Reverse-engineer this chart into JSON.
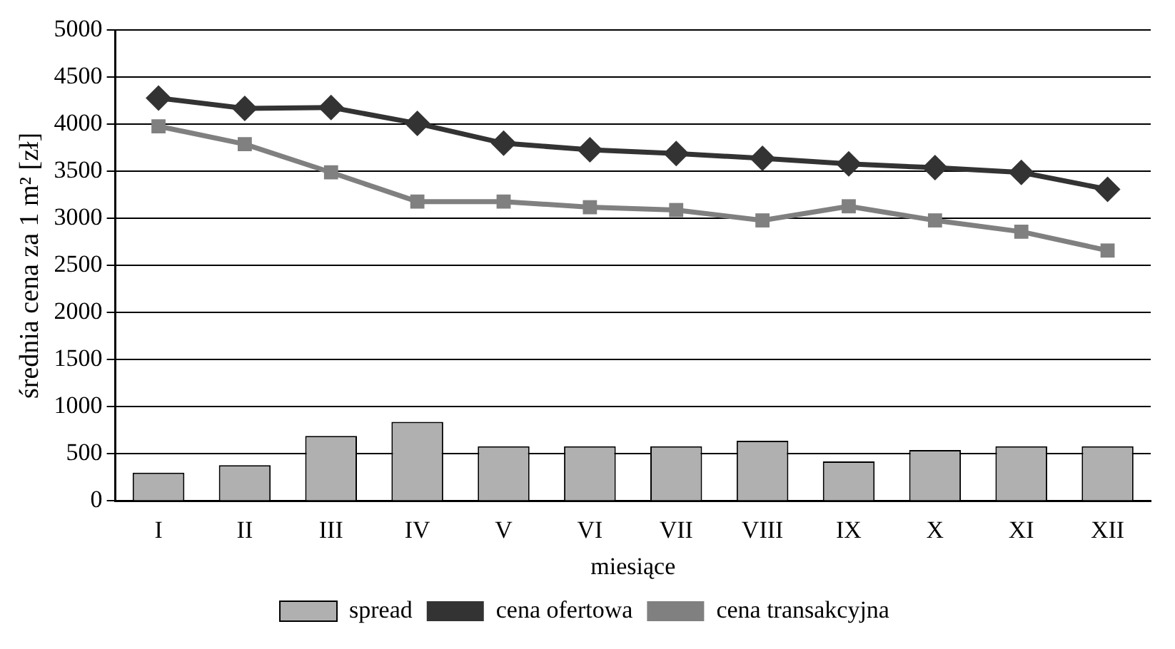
{
  "chart_data": {
    "type": "bar",
    "xlabel": "miesiące",
    "ylabel": "średnia cena za 1 m² [zł]",
    "categories": [
      "I",
      "II",
      "III",
      "IV",
      "V",
      "VI",
      "VII",
      "VIII",
      "IX",
      "X",
      "XI",
      "XII"
    ],
    "series": [
      {
        "name": "spread",
        "color": "#b0b0b0",
        "values": [
          300,
          380,
          690,
          840,
          580,
          580,
          580,
          640,
          420,
          540,
          580,
          580
        ]
      },
      {
        "name": "cena ofertowa",
        "type": "line",
        "color": "#333333",
        "marker": "diamond",
        "values": [
          4280,
          4170,
          4180,
          4010,
          3800,
          3730,
          3690,
          3640,
          3580,
          3540,
          3490,
          3310
        ]
      },
      {
        "name": "cena transakcyjna",
        "type": "line",
        "color": "#808080",
        "marker": "square",
        "values": [
          3980,
          3790,
          3490,
          3180,
          3180,
          3120,
          3090,
          2980,
          3130,
          2980,
          2860,
          2660
        ]
      }
    ],
    "ylim": [
      0,
      5000
    ],
    "yticks": [
      0,
      500,
      1000,
      1500,
      2000,
      2500,
      3000,
      3500,
      4000,
      4500,
      5000
    ],
    "grid": "y",
    "legend": "bottom"
  }
}
